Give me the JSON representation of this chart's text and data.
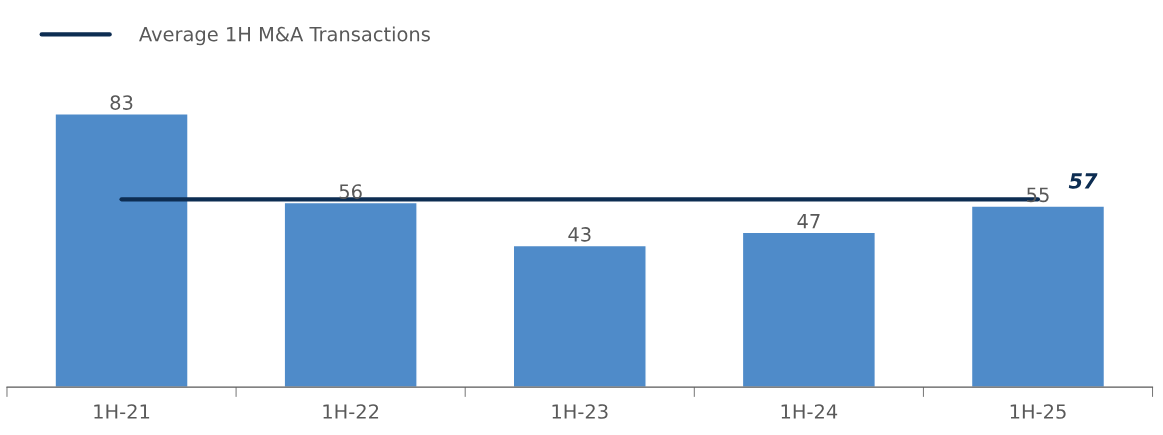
{
  "chart_data": {
    "type": "bar",
    "categories": [
      "1H-21",
      "1H-22",
      "1H-23",
      "1H-24",
      "1H-25"
    ],
    "series": [
      {
        "color": "#4f8bc9",
        "values": [
          83,
          56,
          43,
          47,
          55
        ]
      },
      {
        "type": "line",
        "name": "Average 1H M&A Transactions",
        "color": "#0d2d52",
        "values": [
          57,
          57,
          57,
          57,
          57
        ],
        "value_labels": [
          null,
          null,
          null,
          null,
          "57"
        ]
      }
    ],
    "data_labels": true,
    "legend": "top left",
    "grid": false
  }
}
